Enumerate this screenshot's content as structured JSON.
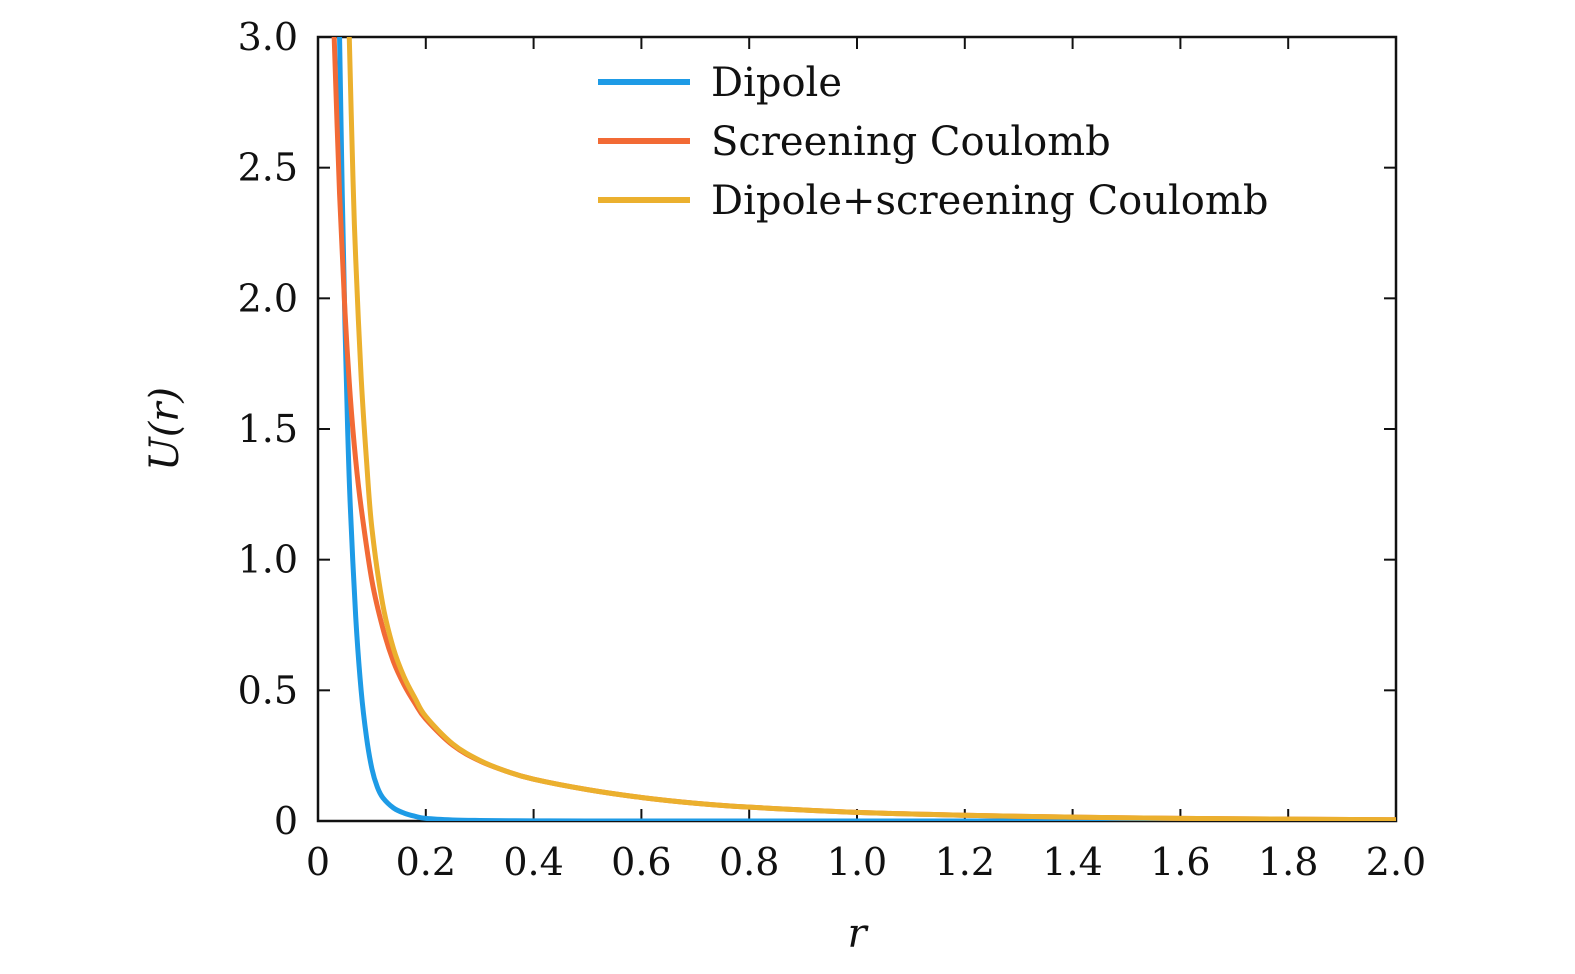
{
  "chart_data": {
    "type": "line",
    "title": "",
    "xlabel": "r",
    "ylabel": "U(r)",
    "xlim": [
      0,
      2.0
    ],
    "ylim": [
      0,
      3.0
    ],
    "x_ticks": [
      0,
      0.2,
      0.4,
      0.6,
      0.8,
      1.0,
      1.2,
      1.4,
      1.6,
      1.8,
      2.0
    ],
    "x_tick_labels": [
      "0",
      "0.2",
      "0.4",
      "0.6",
      "0.8",
      "1.0",
      "1.2",
      "1.4",
      "1.6",
      "1.8",
      "2.0"
    ],
    "y_ticks": [
      0,
      0.5,
      1.0,
      1.5,
      2.0,
      2.5,
      3.0
    ],
    "y_tick_labels": [
      "0",
      "0.5",
      "1.0",
      "1.5",
      "2.0",
      "2.5",
      "3.0"
    ],
    "grid": false,
    "legend_position": "top-right",
    "series": [
      {
        "name": "Dipole",
        "color": "#1e9be6",
        "x": [
          0.04,
          0.045,
          0.05,
          0.055,
          0.06,
          0.07,
          0.08,
          0.09,
          0.1,
          0.11,
          0.12,
          0.14,
          0.16,
          0.18,
          0.2,
          0.25,
          0.3,
          0.4,
          0.5,
          0.7,
          1.0,
          1.5,
          2.0
        ],
        "y": [
          3.0,
          2.4,
          1.9,
          1.5,
          1.2,
          0.78,
          0.5,
          0.32,
          0.2,
          0.13,
          0.09,
          0.05,
          0.03,
          0.018,
          0.01,
          0.004,
          0.002,
          0.0005,
          0.0002,
          0,
          0,
          0,
          0
        ]
      },
      {
        "name": "Screening Coulomb",
        "color": "#f26a35",
        "x": [
          0.03,
          0.04,
          0.05,
          0.06,
          0.07,
          0.08,
          0.1,
          0.12,
          0.14,
          0.16,
          0.18,
          0.2,
          0.25,
          0.3,
          0.35,
          0.4,
          0.5,
          0.6,
          0.7,
          0.8,
          1.0,
          1.2,
          1.4,
          1.6,
          1.8,
          2.0
        ],
        "y": [
          3.0,
          2.4,
          1.95,
          1.62,
          1.38,
          1.2,
          0.92,
          0.74,
          0.61,
          0.52,
          0.45,
          0.39,
          0.29,
          0.23,
          0.19,
          0.16,
          0.12,
          0.09,
          0.068,
          0.053,
          0.033,
          0.022,
          0.015,
          0.01,
          0.007,
          0.005
        ]
      },
      {
        "name": "Dipole+screening Coulomb",
        "color": "#ebb02e",
        "x": [
          0.058,
          0.065,
          0.07,
          0.08,
          0.09,
          0.1,
          0.12,
          0.14,
          0.16,
          0.18,
          0.2,
          0.25,
          0.3,
          0.35,
          0.4,
          0.5,
          0.6,
          0.7,
          0.8,
          1.0,
          1.2,
          1.4,
          1.6,
          1.8,
          2.0
        ],
        "y": [
          3.0,
          2.45,
          2.15,
          1.7,
          1.38,
          1.12,
          0.83,
          0.66,
          0.55,
          0.47,
          0.4,
          0.295,
          0.232,
          0.19,
          0.16,
          0.12,
          0.09,
          0.068,
          0.053,
          0.033,
          0.022,
          0.015,
          0.01,
          0.007,
          0.005
        ]
      }
    ]
  }
}
